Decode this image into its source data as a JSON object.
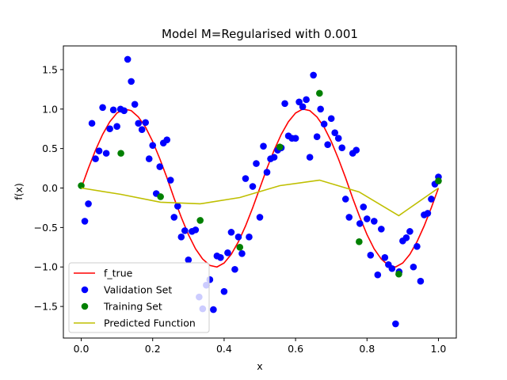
{
  "chart_data": {
    "type": "scatter",
    "title": "Model M=Regularised with 0.001",
    "xlabel": "x",
    "ylabel": "f(x)",
    "xlim": [
      -0.05,
      1.05
    ],
    "ylim": [
      -1.9,
      1.8
    ],
    "xticks": [
      "0.0",
      "0.2",
      "0.4",
      "0.6",
      "0.8",
      "1.0"
    ],
    "yticks": [
      "−1.5",
      "−1.0",
      "−0.5",
      "0.0",
      "0.5",
      "1.0",
      "1.5"
    ],
    "grid": false,
    "legend_position": "lower-left",
    "series": [
      {
        "name": "f_true",
        "kind": "line",
        "color": "#ff0000",
        "x": [
          0.0,
          0.02,
          0.04,
          0.06,
          0.08,
          0.1,
          0.12,
          0.14,
          0.16,
          0.18,
          0.2,
          0.22,
          0.24,
          0.26,
          0.28,
          0.3,
          0.32,
          0.34,
          0.36,
          0.38,
          0.4,
          0.42,
          0.44,
          0.46,
          0.48,
          0.5,
          0.52,
          0.54,
          0.56,
          0.58,
          0.6,
          0.62,
          0.64,
          0.66,
          0.68,
          0.7,
          0.72,
          0.74,
          0.76,
          0.78,
          0.8,
          0.82,
          0.84,
          0.86,
          0.88,
          0.9,
          0.92,
          0.94,
          0.96,
          0.98,
          1.0
        ],
        "y": [
          0.0,
          0.25,
          0.48,
          0.68,
          0.84,
          0.95,
          1.0,
          0.98,
          0.9,
          0.77,
          0.59,
          0.37,
          0.13,
          -0.13,
          -0.37,
          -0.59,
          -0.77,
          -0.9,
          -0.98,
          -1.0,
          -0.95,
          -0.84,
          -0.68,
          -0.48,
          -0.25,
          0.0,
          0.25,
          0.48,
          0.68,
          0.84,
          0.95,
          1.0,
          0.98,
          0.9,
          0.77,
          0.59,
          0.37,
          0.13,
          -0.13,
          -0.37,
          -0.59,
          -0.77,
          -0.9,
          -0.98,
          -1.0,
          -0.95,
          -0.84,
          -0.68,
          -0.48,
          -0.25,
          0.0
        ]
      },
      {
        "name": "Validation Set",
        "kind": "points",
        "color": "#0000ff",
        "x": [
          0.01,
          0.02,
          0.03,
          0.04,
          0.05,
          0.06,
          0.07,
          0.08,
          0.09,
          0.1,
          0.11,
          0.12,
          0.13,
          0.14,
          0.15,
          0.16,
          0.17,
          0.18,
          0.19,
          0.2,
          0.21,
          0.22,
          0.23,
          0.24,
          0.25,
          0.26,
          0.27,
          0.28,
          0.29,
          0.3,
          0.31,
          0.32,
          0.33,
          0.34,
          0.35,
          0.36,
          0.37,
          0.38,
          0.39,
          0.4,
          0.41,
          0.42,
          0.43,
          0.44,
          0.45,
          0.46,
          0.47,
          0.48,
          0.49,
          0.5,
          0.51,
          0.52,
          0.53,
          0.54,
          0.55,
          0.56,
          0.57,
          0.58,
          0.59,
          0.6,
          0.61,
          0.62,
          0.63,
          0.64,
          0.65,
          0.66,
          0.67,
          0.68,
          0.69,
          0.7,
          0.71,
          0.72,
          0.73,
          0.74,
          0.75,
          0.76,
          0.77,
          0.78,
          0.79,
          0.8,
          0.81,
          0.82,
          0.83,
          0.84,
          0.85,
          0.86,
          0.87,
          0.88,
          0.89,
          0.9,
          0.91,
          0.92,
          0.93,
          0.94,
          0.95,
          0.96,
          0.97,
          0.98,
          0.99,
          1.0
        ],
        "y": [
          -0.42,
          -0.2,
          0.82,
          0.37,
          0.47,
          1.02,
          0.44,
          0.75,
          0.99,
          0.78,
          1.0,
          0.98,
          1.63,
          1.35,
          1.06,
          0.82,
          0.74,
          0.83,
          0.37,
          0.54,
          -0.07,
          0.27,
          0.57,
          0.61,
          0.1,
          -0.37,
          -0.23,
          -0.62,
          -0.54,
          -0.91,
          -0.55,
          -0.53,
          -1.38,
          -1.53,
          -1.23,
          -1.16,
          -1.54,
          -0.86,
          -0.88,
          -1.31,
          -0.82,
          -0.56,
          -1.03,
          -0.62,
          -0.83,
          0.12,
          -0.62,
          0.02,
          0.31,
          -0.37,
          0.53,
          0.2,
          0.37,
          0.39,
          0.48,
          0.51,
          1.07,
          0.66,
          0.63,
          0.63,
          1.09,
          1.03,
          1.12,
          0.39,
          1.43,
          0.65,
          1.0,
          0.81,
          0.55,
          0.88,
          0.7,
          0.63,
          0.51,
          -0.14,
          -0.37,
          0.44,
          0.48,
          -0.45,
          -0.24,
          -0.39,
          -0.85,
          -0.42,
          -1.1,
          -0.52,
          -0.88,
          -0.97,
          -1.02,
          -1.72,
          -1.06,
          -0.67,
          -0.63,
          -0.55,
          -1.0,
          -0.74,
          -1.18,
          -0.34,
          -0.32,
          -0.14,
          0.05,
          0.14
        ]
      },
      {
        "name": "Training Set",
        "kind": "points",
        "color": "#008000",
        "x": [
          0.0,
          0.111,
          0.222,
          0.333,
          0.444,
          0.556,
          0.667,
          0.778,
          0.889,
          1.0
        ],
        "y": [
          0.03,
          0.44,
          -0.11,
          -0.41,
          -0.75,
          0.52,
          1.2,
          -0.68,
          -1.09,
          0.09
        ]
      },
      {
        "name": "Predicted Function",
        "kind": "line",
        "color": "#bfbf00",
        "x": [
          0.0,
          0.111,
          0.222,
          0.333,
          0.444,
          0.556,
          0.667,
          0.778,
          0.889,
          1.0
        ],
        "y": [
          0.0,
          -0.08,
          -0.18,
          -0.2,
          -0.12,
          0.03,
          0.1,
          -0.05,
          -0.35,
          0.0
        ]
      }
    ]
  }
}
